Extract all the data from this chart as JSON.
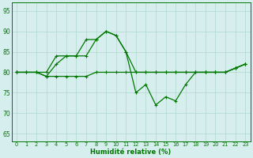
{
  "title": "",
  "xlabel": "Humidité relative (%)",
  "ylabel": "",
  "xlim": [
    -0.5,
    23.5
  ],
  "ylim": [
    63,
    97
  ],
  "yticks": [
    65,
    70,
    75,
    80,
    85,
    90,
    95
  ],
  "xticks": [
    0,
    1,
    2,
    3,
    4,
    5,
    6,
    7,
    8,
    9,
    10,
    11,
    12,
    13,
    14,
    15,
    16,
    17,
    18,
    19,
    20,
    21,
    22,
    23
  ],
  "background_color": "#d7eeee",
  "grid_color": "#b0d8cc",
  "line_color": "#007700",
  "line1": [
    80,
    80,
    80,
    80,
    84,
    84,
    84,
    88,
    88,
    90,
    89,
    85,
    80,
    80,
    80,
    80,
    80,
    80,
    80,
    80,
    80,
    80,
    81,
    82
  ],
  "line2": [
    80,
    80,
    80,
    79,
    82,
    84,
    84,
    84,
    88,
    90,
    89,
    85,
    75,
    77,
    72,
    74,
    73,
    77,
    80,
    80,
    80,
    80,
    81,
    82
  ],
  "line3": [
    80,
    80,
    80,
    79,
    79,
    79,
    79,
    79,
    80,
    80,
    80,
    80,
    80,
    80,
    80,
    80,
    80,
    80,
    80,
    80,
    80,
    80,
    81,
    82
  ]
}
